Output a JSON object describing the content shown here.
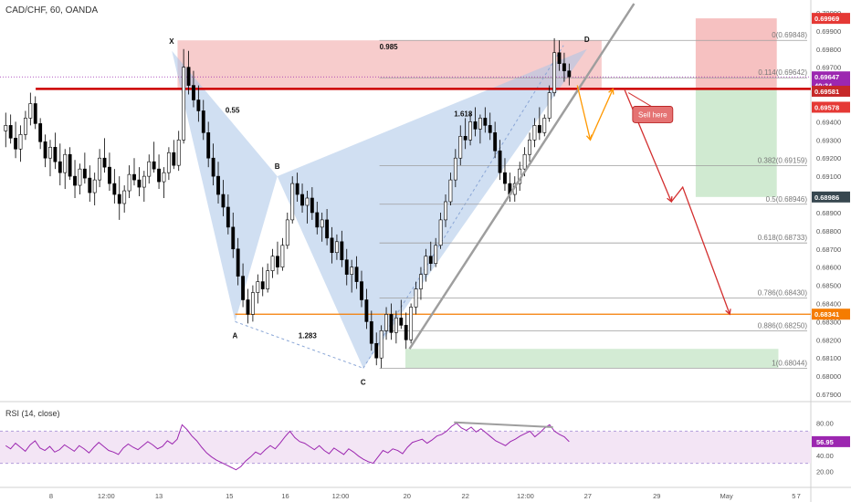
{
  "header": {
    "symbol_line": "CAD/CHF, 60, OANDA"
  },
  "rsi": {
    "label": "RSI (14, close)",
    "current": "56.95",
    "ticks": [
      "80.00",
      "60.00",
      "40.00",
      "20.00"
    ],
    "tick_values": [
      80,
      60,
      40,
      20
    ],
    "band_upper": 70,
    "band_lower": 30,
    "line_color": "#9c27b0",
    "band_color": "#f3e5f5"
  },
  "colors": {
    "harmonic_fill": "#a9c4e8",
    "stop_zone": "#f4b6b6",
    "target_zone": "#c8e6c9",
    "resistance_line": "#cc0000",
    "support_line": "#f57c00",
    "trendline": "#9e9e9e",
    "candle_up": "#ffffff",
    "candle_down": "#000000",
    "projection_red": "#d32f2f",
    "projection_orange": "#ff9800"
  },
  "chart_data": {
    "type": "candlestick",
    "title": "CAD/CHF, 60, OANDA",
    "ylim": [
      0.6788,
      0.7005
    ],
    "y_ticks": [
      0.679,
      0.68,
      0.681,
      0.682,
      0.683,
      0.684,
      0.685,
      0.686,
      0.687,
      0.688,
      0.689,
      0.69,
      0.691,
      0.692,
      0.693,
      0.694,
      0.695,
      0.696,
      0.697,
      0.698,
      0.699,
      0.7
    ],
    "y_tick_labels": [
      "0.67900",
      "0.68000",
      "0.68100",
      "0.68200",
      "0.68300",
      "0.68400",
      "0.68500",
      "0.68600",
      "0.68700",
      "0.68800",
      "0.68900",
      "0.69000",
      "0.69100",
      "0.69200",
      "0.69300",
      "0.69400",
      "0.69500",
      "0.69600",
      "0.69700",
      "0.69800",
      "0.69900",
      "0.70000"
    ],
    "x_labels": [
      "8",
      "12:00",
      "13",
      "15",
      "16",
      "12:00",
      "20",
      "22",
      "12:00",
      "27",
      "29",
      "May",
      "5",
      "7"
    ],
    "price_badges": [
      {
        "label": "0.69969",
        "value": 0.69969,
        "color": "#e53935",
        "text_color": "#ffffff"
      },
      {
        "label": "0.69647",
        "value": 0.69647,
        "color": "#9c27b0",
        "text_color": "#ffffff"
      },
      {
        "label": "40:34",
        "value": 0.696,
        "color": "#9c27b0",
        "text_color": "#ffffff"
      },
      {
        "label": "0.69581",
        "value": 0.69568,
        "color": "#c62828",
        "text_color": "#ffffff"
      },
      {
        "label": "0.69578",
        "value": 0.6948,
        "color": "#e53935",
        "text_color": "#ffffff"
      },
      {
        "label": "0.68986",
        "value": 0.68986,
        "color": "#37474f",
        "text_color": "#ffffff"
      },
      {
        "label": "0.68341",
        "value": 0.68341,
        "color": "#f57c00",
        "text_color": "#ffffff"
      }
    ],
    "fib_levels": [
      {
        "label": "0(0.69848)",
        "value": 0.69848
      },
      {
        "label": "0.114(0.69642)",
        "value": 0.69642
      },
      {
        "label": "0.382(0.69159)",
        "value": 0.69159
      },
      {
        "label": "0.5(0.68946)",
        "value": 0.68946
      },
      {
        "label": "0.618(0.68733)",
        "value": 0.68733
      },
      {
        "label": "0.786(0.68430)",
        "value": 0.6843
      },
      {
        "label": "0.886(0.68250)",
        "value": 0.6825
      },
      {
        "label": "1(0.68044)",
        "value": 0.68044
      }
    ],
    "harmonic_points": [
      {
        "label": "X",
        "t": 0.212,
        "value": 0.6979
      },
      {
        "label": "A",
        "t": 0.29,
        "value": 0.683
      },
      {
        "label": "B",
        "t": 0.342,
        "value": 0.691
      },
      {
        "label": "C",
        "t": 0.448,
        "value": 0.68044
      },
      {
        "label": "D",
        "t": 0.724,
        "value": 0.698
      }
    ],
    "ratios": [
      {
        "label": "0.55",
        "t": 0.278,
        "value": 0.6945
      },
      {
        "label": "1.283",
        "t": 0.368,
        "value": 0.6821
      },
      {
        "label": "1.618",
        "t": 0.56,
        "value": 0.6943
      },
      {
        "label": "0.985",
        "t": 0.468,
        "value": 0.698
      }
    ],
    "resistance": 0.69581,
    "support": 0.68341,
    "annotation": {
      "label": "Sell here",
      "color": "#e57373",
      "text_color": "#ffffff"
    },
    "candles": [
      [
        0.6935,
        0.6945,
        0.6926,
        0.6938
      ],
      [
        0.6938,
        0.6944,
        0.6928,
        0.6931
      ],
      [
        0.6931,
        0.694,
        0.692,
        0.6925
      ],
      [
        0.6925,
        0.6938,
        0.6918,
        0.6933
      ],
      [
        0.6933,
        0.6946,
        0.693,
        0.6942
      ],
      [
        0.6942,
        0.6956,
        0.6938,
        0.695
      ],
      [
        0.695,
        0.6954,
        0.6936,
        0.6939
      ],
      [
        0.6939,
        0.6942,
        0.6925,
        0.6929
      ],
      [
        0.6929,
        0.6933,
        0.6915,
        0.692
      ],
      [
        0.692,
        0.693,
        0.691,
        0.6926
      ],
      [
        0.6926,
        0.6934,
        0.6914,
        0.6918
      ],
      [
        0.6918,
        0.6928,
        0.6905,
        0.6912
      ],
      [
        0.6912,
        0.6925,
        0.6903,
        0.6922
      ],
      [
        0.6922,
        0.6926,
        0.6908,
        0.691
      ],
      [
        0.691,
        0.6919,
        0.6898,
        0.6905
      ],
      [
        0.6905,
        0.6917,
        0.69,
        0.6914
      ],
      [
        0.6914,
        0.6923,
        0.6906,
        0.6909
      ],
      [
        0.6909,
        0.6916,
        0.6896,
        0.6901
      ],
      [
        0.6901,
        0.6912,
        0.6894,
        0.6908
      ],
      [
        0.6908,
        0.6925,
        0.6904,
        0.692
      ],
      [
        0.692,
        0.6931,
        0.6912,
        0.6915
      ],
      [
        0.6915,
        0.6923,
        0.6902,
        0.6906
      ],
      [
        0.6906,
        0.6914,
        0.6895,
        0.69
      ],
      [
        0.69,
        0.691,
        0.6886,
        0.6895
      ],
      [
        0.6895,
        0.6905,
        0.689,
        0.6902
      ],
      [
        0.6902,
        0.6916,
        0.6898,
        0.6911
      ],
      [
        0.6911,
        0.692,
        0.6905,
        0.6908
      ],
      [
        0.6908,
        0.6915,
        0.6899,
        0.6904
      ],
      [
        0.6904,
        0.6913,
        0.6896,
        0.691
      ],
      [
        0.691,
        0.6922,
        0.6906,
        0.6918
      ],
      [
        0.6918,
        0.6929,
        0.6912,
        0.6914
      ],
      [
        0.6914,
        0.6922,
        0.6903,
        0.6907
      ],
      [
        0.6907,
        0.6915,
        0.6898,
        0.6912
      ],
      [
        0.6912,
        0.6926,
        0.6908,
        0.6923
      ],
      [
        0.6923,
        0.693,
        0.6914,
        0.6916
      ],
      [
        0.6916,
        0.6935,
        0.6913,
        0.693
      ],
      [
        0.693,
        0.698,
        0.6928,
        0.697
      ],
      [
        0.697,
        0.6979,
        0.6955,
        0.696
      ],
      [
        0.696,
        0.6968,
        0.6948,
        0.6952
      ],
      [
        0.6952,
        0.696,
        0.694,
        0.6946
      ],
      [
        0.6946,
        0.6952,
        0.693,
        0.6934
      ],
      [
        0.6934,
        0.694,
        0.6915,
        0.692
      ],
      [
        0.692,
        0.6928,
        0.6905,
        0.691
      ],
      [
        0.691,
        0.6918,
        0.6895,
        0.69
      ],
      [
        0.69,
        0.6908,
        0.6888,
        0.6893
      ],
      [
        0.6893,
        0.69,
        0.6878,
        0.6882
      ],
      [
        0.6882,
        0.689,
        0.6865,
        0.687
      ],
      [
        0.687,
        0.6876,
        0.685,
        0.6855
      ],
      [
        0.6855,
        0.6862,
        0.6838,
        0.6842
      ],
      [
        0.6842,
        0.6848,
        0.6829,
        0.6834
      ],
      [
        0.6834,
        0.685,
        0.683,
        0.6846
      ],
      [
        0.6846,
        0.6856,
        0.684,
        0.6852
      ],
      [
        0.6852,
        0.686,
        0.6844,
        0.6848
      ],
      [
        0.6848,
        0.6862,
        0.6846,
        0.6858
      ],
      [
        0.6858,
        0.687,
        0.6854,
        0.6866
      ],
      [
        0.6866,
        0.6874,
        0.6856,
        0.686
      ],
      [
        0.686,
        0.6876,
        0.6858,
        0.6872
      ],
      [
        0.6872,
        0.689,
        0.687,
        0.6886
      ],
      [
        0.6886,
        0.691,
        0.6884,
        0.6906
      ],
      [
        0.6906,
        0.6912,
        0.6896,
        0.69
      ],
      [
        0.69,
        0.6906,
        0.689,
        0.6894
      ],
      [
        0.6894,
        0.6902,
        0.6884,
        0.6898
      ],
      [
        0.6898,
        0.6904,
        0.6886,
        0.689
      ],
      [
        0.689,
        0.6896,
        0.6878,
        0.6882
      ],
      [
        0.6882,
        0.689,
        0.6874,
        0.6886
      ],
      [
        0.6886,
        0.6892,
        0.6872,
        0.6876
      ],
      [
        0.6876,
        0.6882,
        0.6862,
        0.6868
      ],
      [
        0.6868,
        0.6878,
        0.6864,
        0.6874
      ],
      [
        0.6874,
        0.688,
        0.686,
        0.6864
      ],
      [
        0.6864,
        0.687,
        0.685,
        0.6856
      ],
      [
        0.6856,
        0.6864,
        0.6846,
        0.686
      ],
      [
        0.686,
        0.6866,
        0.6848,
        0.6852
      ],
      [
        0.6852,
        0.6858,
        0.6838,
        0.6842
      ],
      [
        0.6842,
        0.6848,
        0.6826,
        0.683
      ],
      [
        0.683,
        0.6836,
        0.6814,
        0.6818
      ],
      [
        0.6818,
        0.6824,
        0.6806,
        0.681
      ],
      [
        0.681,
        0.6828,
        0.68044,
        0.6825
      ],
      [
        0.6825,
        0.6838,
        0.682,
        0.6834
      ],
      [
        0.6834,
        0.684,
        0.682,
        0.6824
      ],
      [
        0.6824,
        0.6836,
        0.6818,
        0.6832
      ],
      [
        0.6832,
        0.6842,
        0.6826,
        0.6828
      ],
      [
        0.6828,
        0.6835,
        0.6815,
        0.682
      ],
      [
        0.682,
        0.684,
        0.6818,
        0.6838
      ],
      [
        0.6838,
        0.6852,
        0.6834,
        0.6848
      ],
      [
        0.6848,
        0.686,
        0.6842,
        0.6856
      ],
      [
        0.6856,
        0.687,
        0.6852,
        0.6866
      ],
      [
        0.6866,
        0.6874,
        0.6858,
        0.6862
      ],
      [
        0.6862,
        0.6876,
        0.686,
        0.6872
      ],
      [
        0.6872,
        0.689,
        0.687,
        0.6886
      ],
      [
        0.6886,
        0.69,
        0.6882,
        0.6896
      ],
      [
        0.6896,
        0.6912,
        0.6894,
        0.6908
      ],
      [
        0.6908,
        0.6925,
        0.6904,
        0.692
      ],
      [
        0.692,
        0.6938,
        0.6916,
        0.6932
      ],
      [
        0.6932,
        0.6942,
        0.6925,
        0.693
      ],
      [
        0.693,
        0.6945,
        0.6927,
        0.694
      ],
      [
        0.694,
        0.6948,
        0.6932,
        0.6936
      ],
      [
        0.6936,
        0.6944,
        0.6928,
        0.6942
      ],
      [
        0.6942,
        0.6948,
        0.6934,
        0.6938
      ],
      [
        0.6938,
        0.6945,
        0.693,
        0.6934
      ],
      [
        0.6934,
        0.694,
        0.692,
        0.6924
      ],
      [
        0.6924,
        0.693,
        0.6908,
        0.6912
      ],
      [
        0.6912,
        0.692,
        0.6902,
        0.6906
      ],
      [
        0.6906,
        0.6912,
        0.6896,
        0.69
      ],
      [
        0.69,
        0.691,
        0.6896,
        0.6906
      ],
      [
        0.6906,
        0.6918,
        0.6902,
        0.6914
      ],
      [
        0.6914,
        0.6926,
        0.691,
        0.6922
      ],
      [
        0.6922,
        0.6934,
        0.6918,
        0.693
      ],
      [
        0.693,
        0.6942,
        0.6926,
        0.6938
      ],
      [
        0.6938,
        0.6948,
        0.693,
        0.6934
      ],
      [
        0.6934,
        0.6944,
        0.6932,
        0.6942
      ],
      [
        0.6942,
        0.696,
        0.694,
        0.6956
      ],
      [
        0.6956,
        0.6986,
        0.6954,
        0.6978
      ],
      [
        0.6978,
        0.69848,
        0.6968,
        0.6972
      ],
      [
        0.6972,
        0.6978,
        0.6962,
        0.6968
      ],
      [
        0.6968,
        0.6972,
        0.696,
        0.69647
      ]
    ],
    "rsi_values": [
      52,
      48,
      55,
      50,
      45,
      53,
      58,
      49,
      46,
      51,
      44,
      47,
      53,
      49,
      45,
      52,
      48,
      43,
      50,
      56,
      51,
      46,
      44,
      41,
      49,
      54,
      50,
      47,
      52,
      57,
      53,
      48,
      51,
      58,
      54,
      60,
      78,
      72,
      64,
      58,
      50,
      43,
      38,
      34,
      31,
      28,
      25,
      22,
      26,
      33,
      38,
      44,
      41,
      47,
      52,
      48,
      55,
      63,
      70,
      62,
      57,
      55,
      51,
      47,
      52,
      46,
      42,
      49,
      45,
      41,
      48,
      44,
      39,
      35,
      32,
      30,
      38,
      46,
      43,
      48,
      46,
      42,
      50,
      56,
      58,
      60,
      55,
      59,
      64,
      66,
      70,
      76,
      80,
      74,
      71,
      75,
      69,
      73,
      68,
      63,
      58,
      55,
      52,
      57,
      60,
      64,
      67,
      70,
      63,
      68,
      74,
      78,
      70,
      66,
      63,
      57
    ]
  }
}
